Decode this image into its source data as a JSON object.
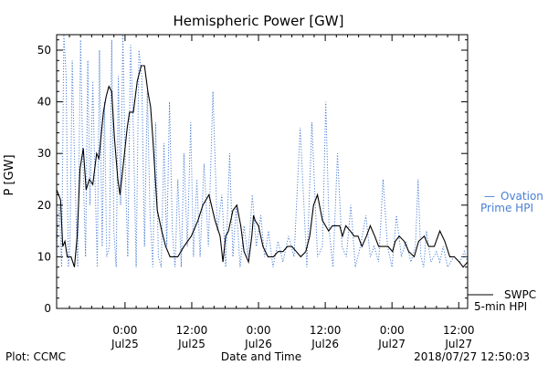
{
  "chart_data": {
    "type": "line",
    "title": "Hemispheric Power [GW]",
    "ylabel": "P [GW]",
    "xlabel": "Date and Time",
    "ylim": [
      0,
      53
    ],
    "xlim_hours_from_jul24_0000": [
      -12.3,
      61.6
    ],
    "yticks": [
      "0",
      "10",
      "20",
      "30",
      "40",
      "50"
    ],
    "xticks": [
      {
        "hour": 0,
        "time": "0:00",
        "date": "Jul25"
      },
      {
        "hour": 12,
        "time": "12:00",
        "date": "Jul25"
      },
      {
        "hour": 24,
        "time": "0:00",
        "date": "Jul26"
      },
      {
        "hour": 36,
        "time": "12:00",
        "date": "Jul26"
      },
      {
        "hour": 48,
        "time": "0:00",
        "date": "Jul27"
      },
      {
        "hour": 60,
        "time": "12:00",
        "date": "Jul27"
      }
    ],
    "series": [
      {
        "name": "SWPC 5-min HPI",
        "color": "#000000",
        "style": "solid",
        "x": [
          -12.3,
          -11.6,
          -11.2,
          -10.8,
          -10.4,
          -9.7,
          -9.1,
          -8.6,
          -8.1,
          -7.5,
          -7.0,
          -6.4,
          -5.8,
          -5.1,
          -4.7,
          -3.9,
          -3.4,
          -2.9,
          -2.4,
          -1.9,
          -1.3,
          -0.9,
          -0.3,
          0.4,
          0.8,
          1.5,
          2.2,
          2.9,
          3.5,
          4.1,
          4.6,
          5.0,
          5.8,
          6.6,
          7.3,
          8.1,
          8.8,
          9.5,
          10.6,
          11.9,
          13.1,
          14.0,
          15.1,
          16.2,
          17.1,
          17.6,
          18.1,
          18.6,
          19.4,
          20.1,
          20.8,
          21.4,
          22.2,
          22.8,
          23.1,
          23.4,
          24.0,
          24.8,
          25.7,
          26.7,
          27.5,
          28.4,
          29.2,
          30.0,
          30.8,
          31.6,
          32.5,
          33.2,
          33.9,
          34.6,
          35.5,
          36.6,
          37.3,
          38.1,
          38.6,
          39.1,
          39.7,
          40.5,
          41.2,
          41.9,
          42.6,
          43.4,
          44.1,
          44.9,
          45.6,
          46.5,
          47.3,
          48.1,
          48.6,
          49.3,
          50.2,
          51.0,
          52.0,
          52.8,
          53.8,
          54.6,
          55.6,
          56.6,
          57.5,
          58.4,
          59.2,
          60.1,
          60.8,
          61.6
        ],
        "values": [
          23,
          21,
          12,
          13,
          10,
          10,
          8,
          14,
          27,
          31,
          23,
          25,
          24,
          30,
          29,
          38,
          41,
          43,
          42,
          33,
          25,
          22,
          28,
          35,
          38,
          38,
          44,
          47,
          47,
          42,
          39,
          33,
          19,
          15,
          12,
          10,
          10,
          10,
          12,
          14,
          17,
          20,
          22,
          17,
          14,
          9,
          14,
          15,
          19,
          20,
          16,
          11,
          9,
          14,
          18,
          17,
          16,
          12,
          10,
          10,
          11,
          11,
          12,
          12,
          11,
          10,
          11,
          14,
          20,
          22,
          17,
          15,
          16,
          16,
          16,
          14,
          16,
          15,
          14,
          14,
          12,
          14,
          16,
          14,
          12,
          12,
          12,
          11,
          13,
          14,
          13,
          11,
          10,
          13,
          14,
          12,
          12,
          15,
          13,
          10,
          10,
          9,
          8,
          9
        ]
      },
      {
        "name": "Ovation Prime HPI",
        "color": "#4a7fd4",
        "style": "dotted",
        "x": [
          -12.3,
          -11.8,
          -11.4,
          -11.0,
          -10.6,
          -10.2,
          -9.9,
          -9.5,
          -9.0,
          -8.5,
          -8.0,
          -7.6,
          -7.1,
          -6.7,
          -6.3,
          -5.8,
          -5.4,
          -5.0,
          -4.6,
          -4.1,
          -3.7,
          -3.3,
          -2.8,
          -2.4,
          -2.0,
          -1.6,
          -1.2,
          -0.8,
          -0.4,
          0.1,
          0.5,
          1.0,
          1.5,
          2.0,
          2.5,
          3.0,
          3.5,
          4.0,
          4.5,
          5.0,
          5.5,
          6.0,
          6.5,
          7.0,
          7.5,
          8.0,
          8.5,
          9.0,
          9.5,
          10.1,
          10.6,
          11.2,
          11.8,
          12.3,
          12.9,
          13.5,
          14.2,
          15.0,
          15.8,
          16.6,
          17.4,
          18.1,
          18.8,
          19.4,
          20.0,
          20.7,
          21.4,
          22.1,
          22.9,
          23.6,
          24.4,
          25.1,
          25.8,
          26.6,
          27.5,
          28.4,
          29.4,
          30.4,
          31.5,
          32.7,
          33.6,
          34.6,
          35.5,
          36.1,
          36.7,
          37.4,
          38.2,
          39.0,
          39.8,
          40.6,
          41.4,
          42.3,
          43.3,
          44.1,
          44.8,
          45.6,
          46.4,
          47.2,
          48.0,
          48.8,
          49.7,
          50.5,
          51.4,
          52.2,
          52.7,
          53.2,
          53.7,
          54.2,
          55.0,
          56.0,
          56.6,
          57.2,
          58.0,
          59.1,
          60.2,
          61.0,
          61.6
        ],
        "values": [
          12,
          20,
          8,
          53,
          45,
          8,
          12,
          48,
          25,
          8,
          52,
          30,
          10,
          48,
          20,
          44,
          25,
          8,
          50,
          12,
          40,
          10,
          12,
          52,
          15,
          8,
          45,
          20,
          53,
          25,
          10,
          51,
          35,
          8,
          50,
          45,
          12,
          42,
          18,
          8,
          36,
          10,
          8,
          32,
          12,
          40,
          15,
          8,
          25,
          8,
          30,
          12,
          36,
          10,
          25,
          10,
          28,
          12,
          42,
          15,
          22,
          8,
          30,
          10,
          20,
          8,
          16,
          10,
          22,
          12,
          18,
          10,
          15,
          8,
          13,
          9,
          14,
          10,
          35,
          8,
          36,
          10,
          12,
          40,
          15,
          8,
          30,
          12,
          10,
          20,
          8,
          12,
          18,
          10,
          12,
          9,
          25,
          12,
          8,
          18,
          10,
          13,
          9,
          12,
          25,
          10,
          8,
          15,
          9,
          11,
          9,
          12,
          8,
          10,
          9,
          11,
          9
        ]
      }
    ],
    "legend": [
      {
        "symbol": "—",
        "name": "Ovation",
        "name2": "Prime HPI",
        "color": "#4a7fd4"
      },
      {
        "symbol": "——",
        "name": "SWPC",
        "name2": "5-min HPI",
        "color": "#000000"
      }
    ],
    "grid": false,
    "legend_position": "right"
  },
  "footer": {
    "plot_credit": "Plot: CCMC",
    "axis_caption": "Date and Time",
    "timestamp": "2018/07/27 12:50:03"
  }
}
